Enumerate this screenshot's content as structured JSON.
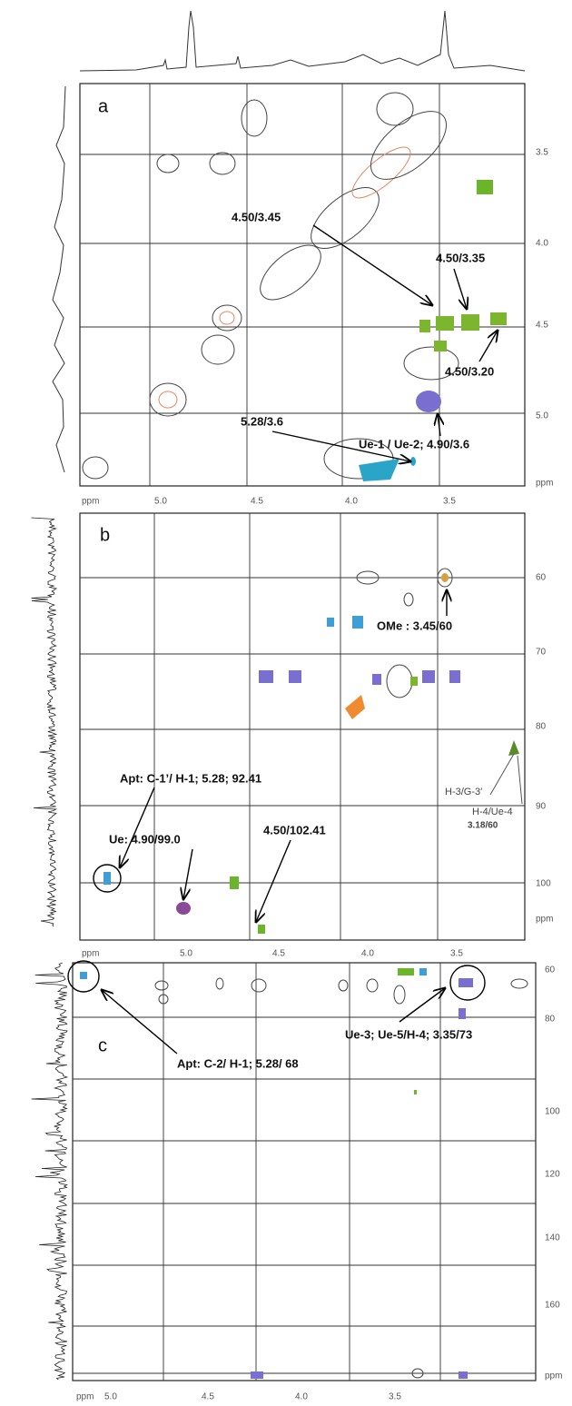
{
  "panels": [
    {
      "label": "a",
      "y_ticks": [
        "3.5",
        "4.0",
        "4.5",
        "5.0",
        "ppm"
      ],
      "x_ticks": [
        "ppm",
        "5.0",
        "4.5",
        "4.0",
        "3.5"
      ],
      "annotations": [
        "4.50/3.45",
        "4.50/3.35",
        "4.50/3.20",
        "5.28/3.6",
        "Ue-1 / Ue-2; 4.90/3.6"
      ]
    },
    {
      "label": "b",
      "y_ticks": [
        "60",
        "70",
        "80",
        "90",
        "100",
        "ppm"
      ],
      "x_ticks": [
        "ppm",
        "5.0",
        "4.5",
        "4.0",
        "3.5"
      ],
      "annotations": [
        "OMe : 3.45/60",
        "Apt: C-1’/ H-1; 5.28; 92.41",
        "Ue: 4.90/99.0",
        "4.50/102.41",
        "H-3/G-3′",
        "H-4/Ue-4",
        "3.18/60"
      ]
    },
    {
      "label": "c",
      "y_ticks": [
        "60",
        "80",
        "100",
        "120",
        "140",
        "160",
        "ppm"
      ],
      "x_ticks": [
        "ppm",
        "5.0",
        "4.5",
        "4.0",
        "3.5"
      ],
      "annotations": [
        "Apt: C-2/ H-1; 5.28/ 68",
        "Ue-3; Ue-5/H-4; 3.35/73"
      ]
    }
  ]
}
